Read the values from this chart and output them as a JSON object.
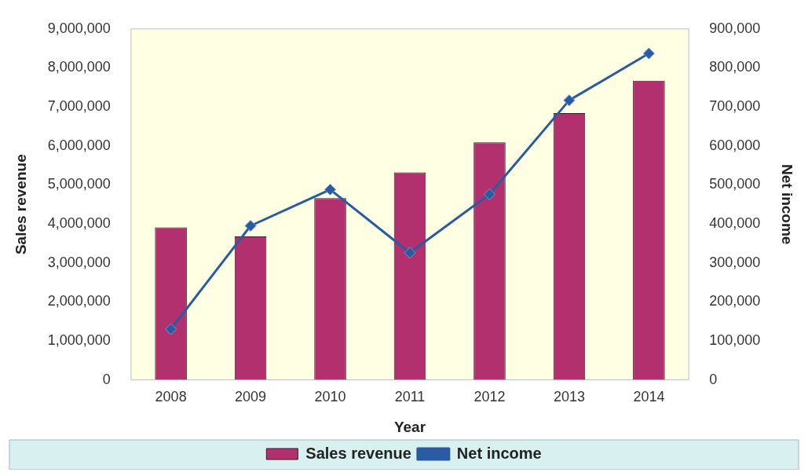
{
  "chart_data": {
    "type": "bar",
    "xlabel": "Year",
    "ylabel": "Sales revenue",
    "y2label": "Net income",
    "categories": [
      "2008",
      "2009",
      "2010",
      "2011",
      "2012",
      "2013",
      "2014"
    ],
    "series": [
      {
        "name": "Sales revenue",
        "color": "#b3306f",
        "values": [
          3910000,
          3680000,
          4660000,
          5320000,
          6090000,
          6840000,
          7670000
        ]
      },
      {
        "name": "Net income",
        "type": "line",
        "axis": "y2",
        "color": "#2a5aa0",
        "marker": "diamond",
        "values": [
          130000,
          395000,
          488000,
          326000,
          476000,
          717000,
          837000
        ]
      }
    ],
    "ylim": [
      0,
      9000000
    ],
    "yticks": [
      0,
      {
        "value": 1000000,
        "label": "1,000,000"
      },
      {
        "value": 2000000,
        "label": "2,000,000"
      },
      {
        "value": 3000000,
        "label": "3,000,000"
      },
      {
        "value": 4000000,
        "label": "4,000,000"
      },
      {
        "value": 5000000,
        "label": "5,000,000"
      },
      {
        "value": 6000000,
        "label": "6,000,000"
      },
      {
        "value": 7000000,
        "label": "7,000,000"
      },
      {
        "value": 8000000,
        "label": "8,000,000"
      },
      {
        "value": 9000000,
        "label": "9,000,000"
      }
    ],
    "y2lim": [
      0,
      900000
    ],
    "y2ticks": [
      0,
      {
        "value": 100000,
        "label": "100,000"
      },
      {
        "value": 200000,
        "label": "200,000"
      },
      {
        "value": 300000,
        "label": "300,000"
      },
      {
        "value": 400000,
        "label": "400,000"
      },
      {
        "value": 500000,
        "label": "500,000"
      },
      {
        "value": 600000,
        "label": "600,000"
      },
      {
        "value": 700000,
        "label": "700,000"
      },
      {
        "value": 800000,
        "label": "800,000"
      },
      {
        "value": 900000,
        "label": "900,000"
      }
    ],
    "grid": false,
    "legend": "bottom"
  }
}
